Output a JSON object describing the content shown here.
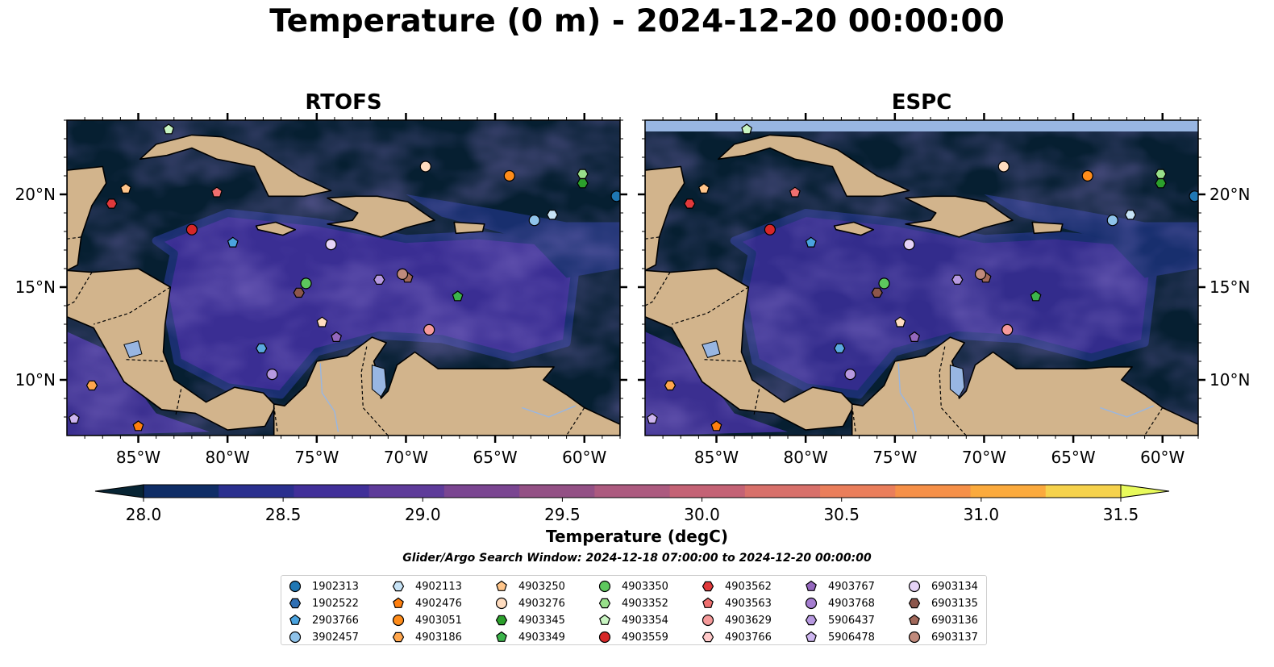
{
  "title": "Temperature (0 m) - 2024-12-20 00:00:00",
  "panels": [
    {
      "title": "RTOFS",
      "top_band": false
    },
    {
      "title": "ESPC",
      "top_band": true
    }
  ],
  "map": {
    "lon_range": [
      -89,
      -58
    ],
    "lat_range": [
      7,
      24
    ],
    "lon_ticks": [
      -85,
      -80,
      -75,
      -70,
      -65,
      -60
    ],
    "lon_tick_labels": [
      "85°W",
      "80°W",
      "75°W",
      "70°W",
      "65°W",
      "60°W"
    ],
    "lat_ticks": [
      10,
      15,
      20
    ],
    "lat_tick_labels": [
      "10°N",
      "15°N",
      "20°N"
    ],
    "ocean_color": "#061f31",
    "land_color": "#d2b48c",
    "lake_color": "#98b6e2"
  },
  "colorbar": {
    "label": "Temperature (degC)",
    "min": 28.0,
    "max": 31.5,
    "ticks": [
      28.0,
      28.5,
      29.0,
      29.5,
      30.0,
      30.5,
      31.0,
      31.5
    ],
    "tick_labels": [
      "28.0",
      "28.5",
      "29.0",
      "29.5",
      "30.0",
      "30.5",
      "31.0",
      "31.5"
    ],
    "colors": [
      "#072434",
      "#0f2d66",
      "#2a2f8e",
      "#412f99",
      "#5e3b9a",
      "#7a4591",
      "#935085",
      "#ac5a7f",
      "#c46275",
      "#d8706a",
      "#ea7e5b",
      "#f69048",
      "#fbaa3d",
      "#f6d24c",
      "#e8fa5b"
    ]
  },
  "search_window": "Glider/Argo Search Window: 2024-12-18 07:00:00 to 2024-12-20 00:00:00",
  "floats": [
    {
      "id": "1902313",
      "marker": "circle",
      "color": "#1f77b4",
      "lon": -58.2,
      "lat": 19.9
    },
    {
      "id": "1902522",
      "marker": "hexagon",
      "color": "#2f6fb3",
      "lon": null,
      "lat": null
    },
    {
      "id": "2903766",
      "marker": "pentagon",
      "color": "#4aa3df",
      "lon": -79.7,
      "lat": 17.4
    },
    {
      "id": "3902457",
      "marker": "circle",
      "color": "#8fc3ea",
      "lon": -62.8,
      "lat": 18.6
    },
    {
      "id": "4902113",
      "marker": "hexagon",
      "color": "#c7e3f6",
      "lon": -61.8,
      "lat": 18.9
    },
    {
      "id": "4902476",
      "marker": "pentagon",
      "color": "#ff7f0e",
      "lon": -85.0,
      "lat": 7.5
    },
    {
      "id": "4903051",
      "marker": "circle",
      "color": "#ff8c1a",
      "lon": -64.2,
      "lat": 21.0
    },
    {
      "id": "4903186",
      "marker": "hexagon",
      "color": "#ffa64d",
      "lon": -87.6,
      "lat": 9.7
    },
    {
      "id": "4903250",
      "marker": "pentagon",
      "color": "#ffc58a",
      "lon": -85.7,
      "lat": 20.3
    },
    {
      "id": "4903276",
      "marker": "circle",
      "color": "#ffdcbf",
      "lon": -68.9,
      "lat": 21.5
    },
    {
      "id": "4903345",
      "marker": "hexagon",
      "color": "#2ca02c",
      "lon": -60.1,
      "lat": 20.6
    },
    {
      "id": "4903349",
      "marker": "pentagon",
      "color": "#3cb44b",
      "lon": -67.1,
      "lat": 14.5
    },
    {
      "id": "4903350",
      "marker": "circle",
      "color": "#5dc85d",
      "lon": -75.6,
      "lat": 15.2
    },
    {
      "id": "4903352",
      "marker": "hexagon",
      "color": "#98df8a",
      "lon": -60.1,
      "lat": 21.1
    },
    {
      "id": "4903354",
      "marker": "pentagon",
      "color": "#c9f5c2",
      "lon": -83.3,
      "lat": 23.5
    },
    {
      "id": "4903559",
      "marker": "circle",
      "color": "#d62728",
      "lon": -82.0,
      "lat": 18.1
    },
    {
      "id": "4903562",
      "marker": "hexagon",
      "color": "#e0393b",
      "lon": -86.5,
      "lat": 19.5
    },
    {
      "id": "4903563",
      "marker": "pentagon",
      "color": "#ef6f6f",
      "lon": -80.6,
      "lat": 20.1
    },
    {
      "id": "4903629",
      "marker": "circle",
      "color": "#f59a9a",
      "lon": -68.7,
      "lat": 12.7
    },
    {
      "id": "4903766",
      "marker": "hexagon",
      "color": "#ffc9c9",
      "lon": null,
      "lat": null
    },
    {
      "id": "4903767",
      "marker": "pentagon",
      "color": "#9467bd",
      "lon": -73.9,
      "lat": 12.3
    },
    {
      "id": "4903768",
      "marker": "circle",
      "color": "#a57dd0",
      "lon": null,
      "lat": null
    },
    {
      "id": "5906437",
      "marker": "hexagon",
      "color": "#b799e0",
      "lon": -71.5,
      "lat": 15.4
    },
    {
      "id": "5906478",
      "marker": "pentagon",
      "color": "#cdb5ef",
      "lon": -88.6,
      "lat": 7.9
    },
    {
      "id": "6903134",
      "marker": "circle",
      "color": "#e6d3f7",
      "lon": -74.2,
      "lat": 17.3
    },
    {
      "id": "6903135",
      "marker": "hexagon",
      "color": "#8c564b",
      "lon": -76.0,
      "lat": 14.7
    },
    {
      "id": "6903136",
      "marker": "pentagon",
      "color": "#a1685a",
      "lon": -69.9,
      "lat": 15.5
    },
    {
      "id": "6903137",
      "marker": "circle",
      "color": "#c08a7c",
      "lon": -70.2,
      "lat": 15.7
    },
    {
      "id": "extra-1",
      "marker": "hexagon",
      "color": "#5aa8e0",
      "lon": -78.1,
      "lat": 11.7
    },
    {
      "id": "extra-2",
      "marker": "pentagon",
      "color": "#ffdcbf",
      "lon": -74.7,
      "lat": 13.1
    },
    {
      "id": "extra-3",
      "marker": "circle",
      "color": "#b799e0",
      "lon": -77.5,
      "lat": 10.3
    }
  ],
  "legend_ids": [
    "1902313",
    "1902522",
    "2903766",
    "3902457",
    "4902113",
    "4902476",
    "4903051",
    "4903186",
    "4903250",
    "4903276",
    "4903345",
    "4903349",
    "4903350",
    "4903352",
    "4903354",
    "4903559",
    "4903562",
    "4903563",
    "4903629",
    "4903766",
    "4903767",
    "4903768",
    "5906437",
    "5906478",
    "6903134",
    "6903135",
    "6903136",
    "6903137"
  ]
}
